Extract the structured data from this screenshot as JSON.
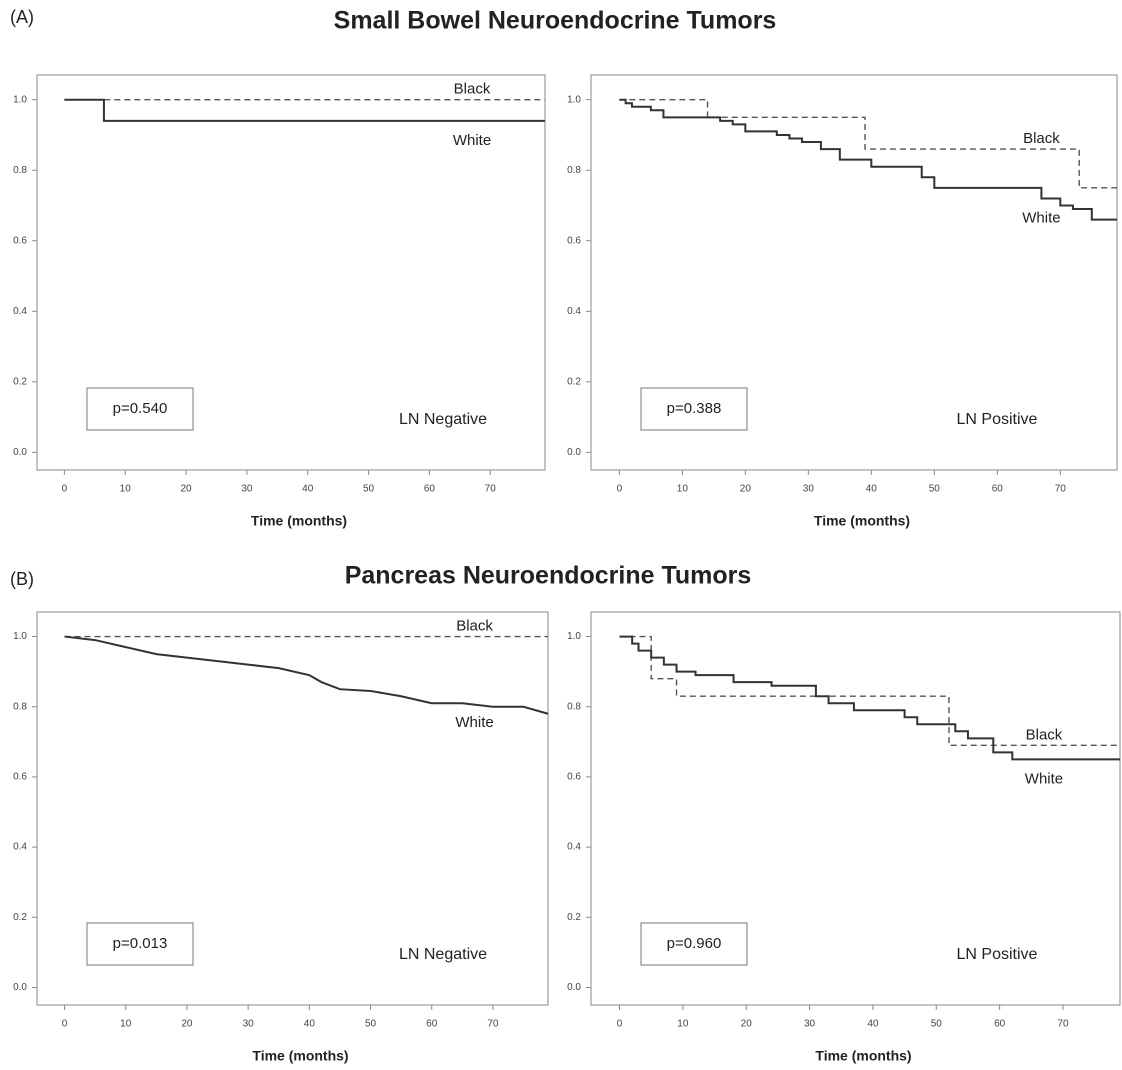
{
  "sections": [
    {
      "label": "(A)",
      "title": "Small Bowel Neuroendocrine Tumors"
    },
    {
      "label": "(B)",
      "title": "Pancreas Neuroendocrine Tumors"
    }
  ],
  "chart_data": [
    {
      "type": "line",
      "xlabel": "Time (months)",
      "annotations": [
        "p=0.540",
        "LN Negative"
      ],
      "xlim": [
        -4.5,
        79
      ],
      "ylim": [
        -0.05,
        1.07
      ],
      "xticks": [
        0,
        10,
        20,
        30,
        40,
        50,
        60,
        70
      ],
      "yticks": [
        {
          "value": 0,
          "label": "0.0"
        },
        0.2,
        0.4,
        0.6,
        0.8,
        {
          "value": 1,
          "label": "1.0"
        }
      ],
      "series": [
        {
          "name": "Black",
          "color": "#555555",
          "line_style": "dashed",
          "x": [
            0,
            79
          ],
          "values": [
            1,
            1
          ]
        },
        {
          "name": "White",
          "color": "#333333",
          "line_style": "solid",
          "x": [
            0,
            6.5,
            6.5,
            79
          ],
          "values": [
            1,
            1,
            0.94,
            0.94
          ]
        }
      ]
    },
    {
      "type": "line",
      "xlabel": "Time (months)",
      "annotations": [
        "p=0.388",
        "LN Positive"
      ],
      "xlim": [
        -4.5,
        79
      ],
      "ylim": [
        -0.05,
        1.07
      ],
      "xticks": [
        0,
        10,
        20,
        30,
        40,
        50,
        60,
        70
      ],
      "yticks": [
        {
          "value": 0,
          "label": "0.0"
        },
        0.2,
        0.4,
        0.6,
        0.8,
        {
          "value": 1,
          "label": "1.0"
        }
      ],
      "series": [
        {
          "name": "Black",
          "color": "#555555",
          "line_style": "dashed",
          "x": [
            0,
            14,
            14,
            39,
            39,
            73,
            73,
            79
          ],
          "values": [
            1,
            1,
            0.95,
            0.95,
            0.86,
            0.86,
            0.75,
            0.75
          ]
        },
        {
          "name": "White",
          "color": "#333333",
          "line_style": "solid",
          "x": [
            0,
            1,
            1,
            2,
            2,
            5,
            5,
            7,
            7,
            16,
            16,
            18,
            18,
            20,
            20,
            25,
            25,
            27,
            27,
            29,
            29,
            32,
            32,
            35,
            35,
            40,
            40,
            48,
            48,
            50,
            50,
            67,
            67,
            70,
            70,
            72,
            72,
            75,
            75,
            79
          ],
          "values": [
            1,
            1,
            0.99,
            0.99,
            0.98,
            0.98,
            0.97,
            0.97,
            0.95,
            0.95,
            0.94,
            0.94,
            0.93,
            0.93,
            0.91,
            0.91,
            0.9,
            0.9,
            0.89,
            0.89,
            0.88,
            0.88,
            0.86,
            0.86,
            0.83,
            0.83,
            0.81,
            0.81,
            0.78,
            0.78,
            0.75,
            0.75,
            0.72,
            0.72,
            0.7,
            0.7,
            0.69,
            0.69,
            0.66,
            0.66
          ]
        }
      ]
    },
    {
      "type": "line",
      "xlabel": "Time (months)",
      "annotations": [
        "p=0.013",
        "LN Negative"
      ],
      "xlim": [
        -4.5,
        79
      ],
      "ylim": [
        -0.05,
        1.07
      ],
      "xticks": [
        0,
        10,
        20,
        30,
        40,
        50,
        60,
        70
      ],
      "yticks": [
        {
          "value": 0,
          "label": "0.0"
        },
        0.2,
        0.4,
        0.6,
        0.8,
        {
          "value": 1,
          "label": "1.0"
        }
      ],
      "series": [
        {
          "name": "Black",
          "color": "#555555",
          "line_style": "dashed",
          "x": [
            0,
            79
          ],
          "values": [
            1,
            1
          ]
        },
        {
          "name": "White",
          "color": "#333333",
          "line_style": "solid",
          "x": [
            0,
            5,
            10,
            15,
            20,
            25,
            30,
            35,
            40,
            42,
            45,
            50,
            55,
            60,
            65,
            70,
            75,
            79
          ],
          "values": [
            1,
            0.99,
            0.97,
            0.95,
            0.94,
            0.93,
            0.92,
            0.91,
            0.89,
            0.87,
            0.85,
            0.845,
            0.83,
            0.81,
            0.81,
            0.8,
            0.8,
            0.78
          ]
        }
      ]
    },
    {
      "type": "line",
      "xlabel": "Time (months)",
      "annotations": [
        "p=0.960",
        "LN Positive"
      ],
      "xlim": [
        -4.5,
        79
      ],
      "ylim": [
        -0.05,
        1.07
      ],
      "xticks": [
        0,
        10,
        20,
        30,
        40,
        50,
        60,
        70
      ],
      "yticks": [
        {
          "value": 0,
          "label": "0.0"
        },
        0.2,
        0.4,
        0.6,
        0.8,
        {
          "value": 1,
          "label": "1.0"
        }
      ],
      "series": [
        {
          "name": "Black",
          "color": "#555555",
          "line_style": "dashed",
          "x": [
            0,
            5,
            5,
            9,
            9,
            52,
            52,
            79
          ],
          "values": [
            1,
            1,
            0.88,
            0.88,
            0.83,
            0.83,
            0.69,
            0.69
          ]
        },
        {
          "name": "White",
          "color": "#333333",
          "line_style": "solid",
          "x": [
            0,
            2,
            2,
            3,
            3,
            5,
            5,
            7,
            7,
            9,
            9,
            12,
            12,
            18,
            18,
            24,
            24,
            31,
            31,
            33,
            33,
            37,
            37,
            45,
            45,
            47,
            47,
            53,
            53,
            55,
            55,
            59,
            59,
            62,
            62,
            79
          ],
          "values": [
            1,
            1,
            0.98,
            0.98,
            0.96,
            0.96,
            0.94,
            0.94,
            0.92,
            0.92,
            0.9,
            0.9,
            0.89,
            0.89,
            0.87,
            0.87,
            0.86,
            0.86,
            0.83,
            0.83,
            0.81,
            0.81,
            0.79,
            0.79,
            0.77,
            0.77,
            0.75,
            0.75,
            0.73,
            0.73,
            0.71,
            0.71,
            0.67,
            0.67,
            0.65,
            0.65
          ]
        }
      ]
    }
  ]
}
